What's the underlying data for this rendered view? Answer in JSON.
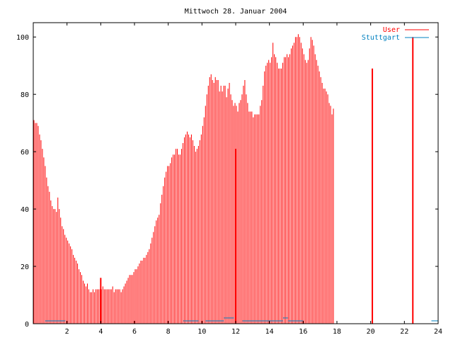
{
  "chart_data": {
    "type": "bar",
    "title": "Mittwoch 28. Januar 2004",
    "xlabel": "",
    "ylabel": "",
    "xlim": [
      0,
      24
    ],
    "ylim": [
      0,
      105
    ],
    "x_ticks": [
      2,
      4,
      6,
      8,
      10,
      12,
      14,
      16,
      18,
      20,
      22,
      24
    ],
    "y_ticks": [
      0,
      20,
      40,
      60,
      80,
      100
    ],
    "grid": false,
    "legend_position": "top-right",
    "series": [
      {
        "name": "User",
        "color": "#ff0000",
        "interval_minutes": 5,
        "values": [
          71,
          70,
          70,
          69,
          66,
          64,
          61,
          58,
          55,
          51,
          48,
          46,
          43,
          41,
          40,
          40,
          39,
          44,
          40,
          37,
          34,
          33,
          31,
          30,
          29,
          28,
          27,
          26,
          24,
          23,
          22,
          21,
          19,
          18,
          17,
          15,
          14,
          13,
          14,
          12,
          11,
          11,
          12,
          11,
          12,
          12,
          12,
          12,
          12,
          13,
          12,
          12,
          12,
          12,
          12,
          12,
          13,
          11,
          12,
          12,
          12,
          12,
          11,
          12,
          13,
          14,
          15,
          16,
          17,
          17,
          17,
          18,
          19,
          19,
          20,
          21,
          22,
          22,
          23,
          23,
          24,
          25,
          26,
          28,
          30,
          32,
          34,
          36,
          37,
          38,
          42,
          45,
          48,
          51,
          53,
          55,
          55,
          56,
          58,
          59,
          59,
          61,
          61,
          59,
          59,
          61,
          63,
          65,
          66,
          67,
          66,
          65,
          66,
          64,
          62,
          60,
          61,
          62,
          64,
          66,
          69,
          72,
          76,
          80,
          83,
          86,
          87,
          85,
          84,
          86,
          85,
          85,
          81,
          83,
          81,
          83,
          83,
          79,
          82,
          84,
          80,
          78,
          76,
          77,
          76,
          74,
          77,
          78,
          80,
          83,
          85,
          80,
          77,
          74,
          74,
          74,
          72,
          73,
          73,
          73,
          73,
          76,
          78,
          83,
          88,
          90,
          91,
          92,
          91,
          93,
          98,
          94,
          93,
          91,
          89,
          89,
          89,
          91,
          93,
          93,
          94,
          93,
          94,
          96,
          97,
          98,
          100,
          100,
          101,
          100,
          98,
          96,
          94,
          92,
          91,
          92,
          96,
          100,
          99,
          97,
          94,
          92,
          90,
          88,
          86,
          84,
          82,
          82,
          81,
          80,
          77,
          76,
          73,
          75
        ],
        "spikes": [
          {
            "x": 4.0,
            "value": 16
          },
          {
            "x": 12.0,
            "value": 61
          },
          {
            "x": 20.1,
            "value": 89
          },
          {
            "x": 22.5,
            "value": 100
          }
        ]
      },
      {
        "name": "Stuttgart",
        "color": "#0080c0",
        "interval_minutes": 5,
        "segments": [
          {
            "start": 0.7,
            "end": 1.9,
            "value": 1
          },
          {
            "start": 8.9,
            "end": 9.8,
            "value": 1
          },
          {
            "start": 10.2,
            "end": 11.3,
            "value": 1
          },
          {
            "start": 11.3,
            "end": 11.9,
            "value": 2
          },
          {
            "start": 12.4,
            "end": 14.8,
            "value": 1
          },
          {
            "start": 14.8,
            "end": 15.1,
            "value": 2
          },
          {
            "start": 15.1,
            "end": 16.0,
            "value": 1
          },
          {
            "start": 23.6,
            "end": 24.0,
            "value": 1
          }
        ]
      }
    ]
  }
}
